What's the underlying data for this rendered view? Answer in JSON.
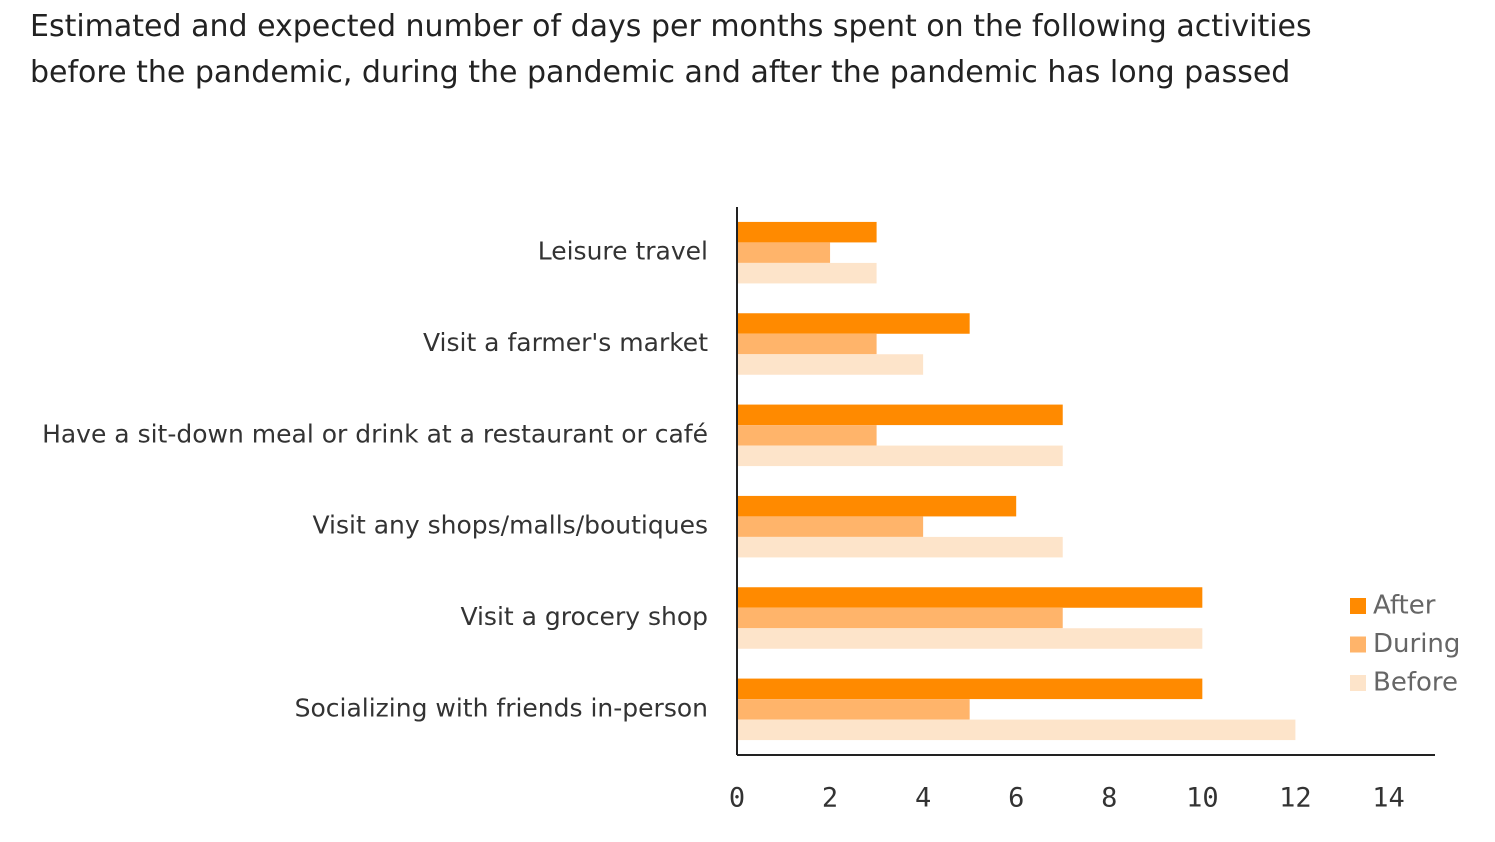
{
  "chart_data": {
    "type": "bar",
    "orientation": "horizontal",
    "title": "Estimated and expected number of days per months spent on the following activities\nbefore the pandemic, during the pandemic and after the pandemic has long passed",
    "categories": [
      "Leisure travel",
      "Visit a farmer's market",
      "Have a sit-down meal or drink at a restaurant or café",
      "Visit any shops/malls/boutiques",
      "Visit a grocery shop",
      "Socializing with friends in-person"
    ],
    "series": [
      {
        "name": "After",
        "color": "#ff8a00",
        "values": [
          3,
          5,
          7,
          6,
          10,
          10
        ]
      },
      {
        "name": "During",
        "color": "#ffb46a",
        "values": [
          2,
          3,
          3,
          4,
          7,
          5
        ]
      },
      {
        "name": "Before",
        "color": "#fde4ca",
        "values": [
          3,
          4,
          7,
          7,
          10,
          12
        ]
      }
    ],
    "xlim": [
      0,
      15
    ],
    "xticks": [
      0,
      2,
      4,
      6,
      8,
      10,
      12,
      14
    ],
    "grid": false,
    "legend": "right"
  }
}
